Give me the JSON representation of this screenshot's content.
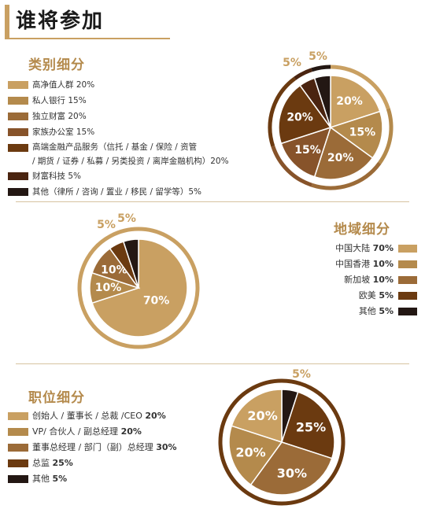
{
  "page_title": "谁将参加",
  "colors": {
    "accent": "#c9a062",
    "c1": "#c9a062",
    "c2": "#b48a4c",
    "c3": "#9b6b38",
    "c4": "#87532a",
    "c5": "#6b3a10",
    "c6": "#4a2410",
    "c7": "#231713"
  },
  "chart_data": [
    {
      "type": "pie",
      "title": "类别细分",
      "categories": [
        "高净值人群",
        "私人银行",
        "独立财富",
        "家族办公室",
        "高端金融产品服务（信托 / 基金 / 保险 / 资管 / 期货 / 证券 / 私募 / 另类投资 / 离岸金融机构）",
        "财富科技",
        "其他（律所 / 咨询 / 置业 / 移民 / 留学等）"
      ],
      "values": [
        20,
        15,
        20,
        15,
        20,
        5,
        5
      ],
      "slice_labels": [
        "20%",
        "15%",
        "20%",
        "15%",
        "20%",
        "5%",
        "5%"
      ],
      "legend": [
        {
          "text": "高净值人群 20%",
          "color": "c1"
        },
        {
          "text": "私人银行 15%",
          "color": "c2"
        },
        {
          "text": "独立财富 20%",
          "color": "c3"
        },
        {
          "text": "家族办公室 15%",
          "color": "c4"
        },
        {
          "line1": "高端金融产品服务（信托 / 基金 / 保险 / 资管",
          "line2": "/ 期货 / 证券 / 私募 / 另类投资 / 离岸金融机构）20%",
          "color": "c5"
        },
        {
          "text": "财富科技 5%",
          "color": "c6"
        },
        {
          "text": "其他（律所 / 咨询 / 置业 / 移民 / 留学等）5%",
          "color": "c7"
        }
      ]
    },
    {
      "type": "pie",
      "title": "地域细分",
      "categories": [
        "中国大陆",
        "中国香港",
        "新加坡",
        "欧美",
        "其他"
      ],
      "values": [
        70,
        10,
        10,
        5,
        5
      ],
      "slice_labels": [
        "70%",
        "10%",
        "10%",
        "5%",
        "5%"
      ],
      "legend": [
        {
          "name": "中国大陆",
          "value": "70%",
          "color": "c1"
        },
        {
          "name": "中国香港",
          "value": "10%",
          "color": "c2"
        },
        {
          "name": "新加坡",
          "value": "10%",
          "color": "c3"
        },
        {
          "name": "欧美",
          "value": "5%",
          "color": "c5"
        },
        {
          "name": "其他",
          "value": "5%",
          "color": "c7"
        }
      ]
    },
    {
      "type": "pie",
      "title": "职位细分",
      "categories": [
        "创始人 / 董事长 / 总裁 /CEO",
        "VP/ 合伙人 / 副总经理",
        "董事总经理 / 部门（副）总经理",
        "总监",
        "其他"
      ],
      "values": [
        20,
        20,
        30,
        25,
        5
      ],
      "slice_labels": [
        "20%",
        "20%",
        "30%",
        "25%",
        "5%"
      ],
      "legend": [
        {
          "name": "创始人 / 董事长 / 总裁 /CEO",
          "value": "20%",
          "color": "c1"
        },
        {
          "name": "VP/ 合伙人 / 副总经理",
          "value": "20%",
          "color": "c2"
        },
        {
          "name": "董事总经理 / 部门（副）总经理",
          "value": "30%",
          "color": "c3"
        },
        {
          "name": "总监",
          "value": "25%",
          "color": "c5"
        },
        {
          "name": "其他",
          "value": "5%",
          "color": "c7"
        }
      ]
    }
  ]
}
